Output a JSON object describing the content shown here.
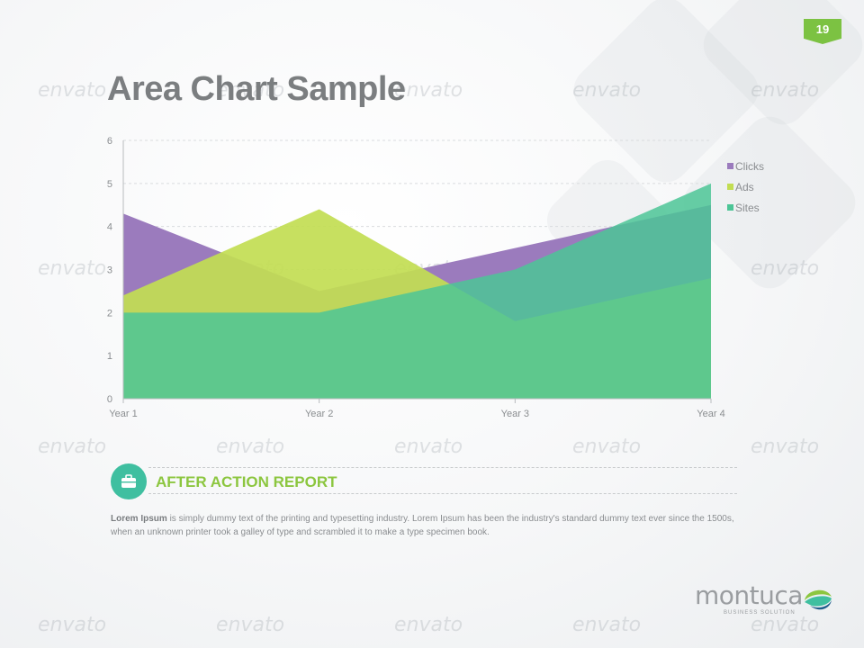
{
  "page_number": "19",
  "title": "Area Chart Sample",
  "watermark_text": "envato",
  "colors": {
    "clicks": "#9b7bbd",
    "ads": "#c2dd52",
    "sites": "#4cc596",
    "sites_overlap": "#52b8a0",
    "accent_green": "#8cc63f",
    "accent_teal": "#3fbfa0"
  },
  "chart_data": {
    "type": "area",
    "categories": [
      "Year 1",
      "Year 2",
      "Year 3",
      "Year 4"
    ],
    "ylim": [
      0,
      6
    ],
    "yticks": [
      "0",
      "1",
      "2",
      "3",
      "4",
      "5",
      "6"
    ],
    "grid": true,
    "legend_position": "top-right",
    "series": [
      {
        "name": "Clicks",
        "values": [
          4.3,
          2.5,
          3.5,
          4.5
        ]
      },
      {
        "name": "Ads",
        "values": [
          2.4,
          4.4,
          1.8,
          2.8
        ]
      },
      {
        "name": "Sites",
        "values": [
          2.0,
          2.0,
          3.0,
          5.0
        ]
      }
    ]
  },
  "section": {
    "icon": "briefcase-icon",
    "title": "AFTER ACTION REPORT",
    "body_lead": "Lorem Ipsum",
    "body_text": " is simply dummy text of the printing and typesetting industry. Lorem Ipsum has been the industry's standard dummy text ever since the 1500s, when an unknown printer took a galley of type and scrambled it to make a type specimen book."
  },
  "logo": {
    "name": "montuca",
    "tagline": "BUSINESS SOLUTION"
  }
}
